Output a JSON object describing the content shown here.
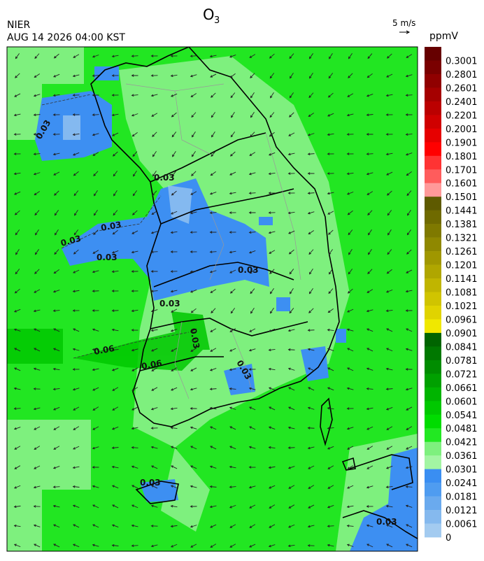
{
  "header": {
    "title": "O",
    "title_subscript": "3",
    "agency": "NIER",
    "timestamp": "AUG 14 2026 04:00 KST"
  },
  "wind_legend": {
    "label": "5 m/s"
  },
  "colorbar": {
    "unit": "ppmV",
    "levels": [
      0.3001,
      0.2801,
      0.2601,
      0.2401,
      0.2201,
      0.2001,
      0.1901,
      0.1801,
      0.1701,
      0.1601,
      0.1501,
      0.1441,
      0.1381,
      0.1321,
      0.1261,
      0.1201,
      0.1141,
      0.1081,
      0.1021,
      0.0961,
      0.0901,
      0.0841,
      0.0781,
      0.0721,
      0.0661,
      0.0601,
      0.0541,
      0.0481,
      0.0421,
      0.0361,
      0.0301,
      0.0241,
      0.0181,
      0.0121,
      0.0061,
      0
    ],
    "colors": [
      "#660000",
      "#7a0000",
      "#900000",
      "#a50000",
      "#bb0000",
      "#d00000",
      "#e60000",
      "#ff0000",
      "#ff3333",
      "#ff5c5c",
      "#ff9999",
      "#5e5a00",
      "#6f6a00",
      "#7f7900",
      "#8f8800",
      "#a09700",
      "#b0a600",
      "#c0b500",
      "#d0c400",
      "#e0d300",
      "#f0e800",
      "#006400",
      "#007800",
      "#008c00",
      "#00a000",
      "#00b400",
      "#00c800",
      "#00dc00",
      "#22e822",
      "#7ef07e",
      "#a3f5a3",
      "#3a8ef2",
      "#4f9cf0",
      "#6aaaee",
      "#85b9ee",
      "#a3cbf0"
    ]
  },
  "map": {
    "contour_labels": [
      "0.03",
      "0.03",
      "0.03",
      "0.03",
      "0.03",
      "0.03",
      "0.03",
      "0.03",
      "0.03",
      "0.03",
      "0.03",
      "0.06",
      "0.06"
    ]
  }
}
